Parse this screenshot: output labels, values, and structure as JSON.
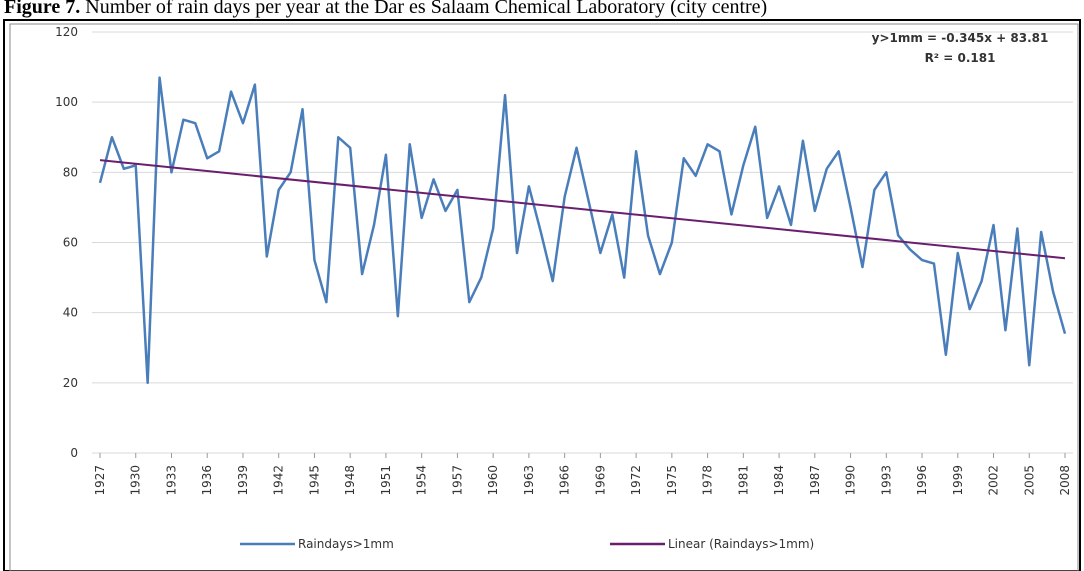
{
  "chart_data": {
    "type": "line",
    "caption_label": "Figure 7.",
    "title": "Number of rain days per year at the Dar es Salaam Chemical Laboratory (city centre)",
    "annotation": [
      "y>1mm = -0.345x + 83.81",
      "R² = 0.181"
    ],
    "x": [
      1927,
      1928,
      1929,
      1930,
      1931,
      1932,
      1933,
      1934,
      1935,
      1936,
      1937,
      1938,
      1939,
      1940,
      1941,
      1942,
      1943,
      1944,
      1945,
      1946,
      1947,
      1948,
      1949,
      1950,
      1951,
      1952,
      1953,
      1954,
      1955,
      1956,
      1957,
      1958,
      1959,
      1960,
      1961,
      1962,
      1963,
      1964,
      1965,
      1966,
      1967,
      1968,
      1969,
      1970,
      1971,
      1972,
      1973,
      1974,
      1975,
      1976,
      1977,
      1978,
      1979,
      1980,
      1981,
      1982,
      1983,
      1984,
      1985,
      1986,
      1987,
      1988,
      1989,
      1990,
      1991,
      1992,
      1993,
      1994,
      1995,
      1996,
      1997,
      1998,
      1999,
      2000,
      2001,
      2002,
      2003,
      2004,
      2005,
      2006,
      2007,
      2008
    ],
    "series": [
      {
        "name": "Raindays>1mm",
        "color": "#4a7ebb",
        "values": [
          77,
          90,
          81,
          82,
          20,
          107,
          80,
          95,
          94,
          84,
          86,
          103,
          94,
          105,
          56,
          75,
          80,
          98,
          55,
          43,
          90,
          87,
          51,
          65,
          85,
          39,
          88,
          67,
          78,
          69,
          75,
          43,
          50,
          64,
          102,
          57,
          76,
          63,
          49,
          73,
          87,
          72,
          57,
          68,
          50,
          86,
          62,
          51,
          60,
          84,
          79,
          88,
          86,
          68,
          82,
          93,
          67,
          76,
          65,
          89,
          69,
          81,
          86,
          70,
          53,
          75,
          80,
          62,
          58,
          55,
          54,
          28,
          57,
          41,
          49,
          65,
          35,
          64,
          25,
          63,
          46,
          34
        ]
      },
      {
        "name": "Linear (Raindays>1mm)",
        "color": "#6a1f6e",
        "x": [
          1927,
          2008
        ],
        "values": [
          83.47,
          55.52
        ]
      }
    ],
    "xlim": [
      1927,
      2008
    ],
    "xticks": [
      1927,
      1930,
      1933,
      1936,
      1939,
      1942,
      1945,
      1948,
      1951,
      1954,
      1957,
      1960,
      1963,
      1966,
      1969,
      1972,
      1975,
      1978,
      1981,
      1984,
      1987,
      1990,
      1993,
      1996,
      1999,
      2002,
      2005,
      2008
    ],
    "ylim": [
      0,
      120
    ],
    "yticks": [
      0,
      20,
      40,
      60,
      80,
      100,
      120
    ],
    "grid": true
  }
}
